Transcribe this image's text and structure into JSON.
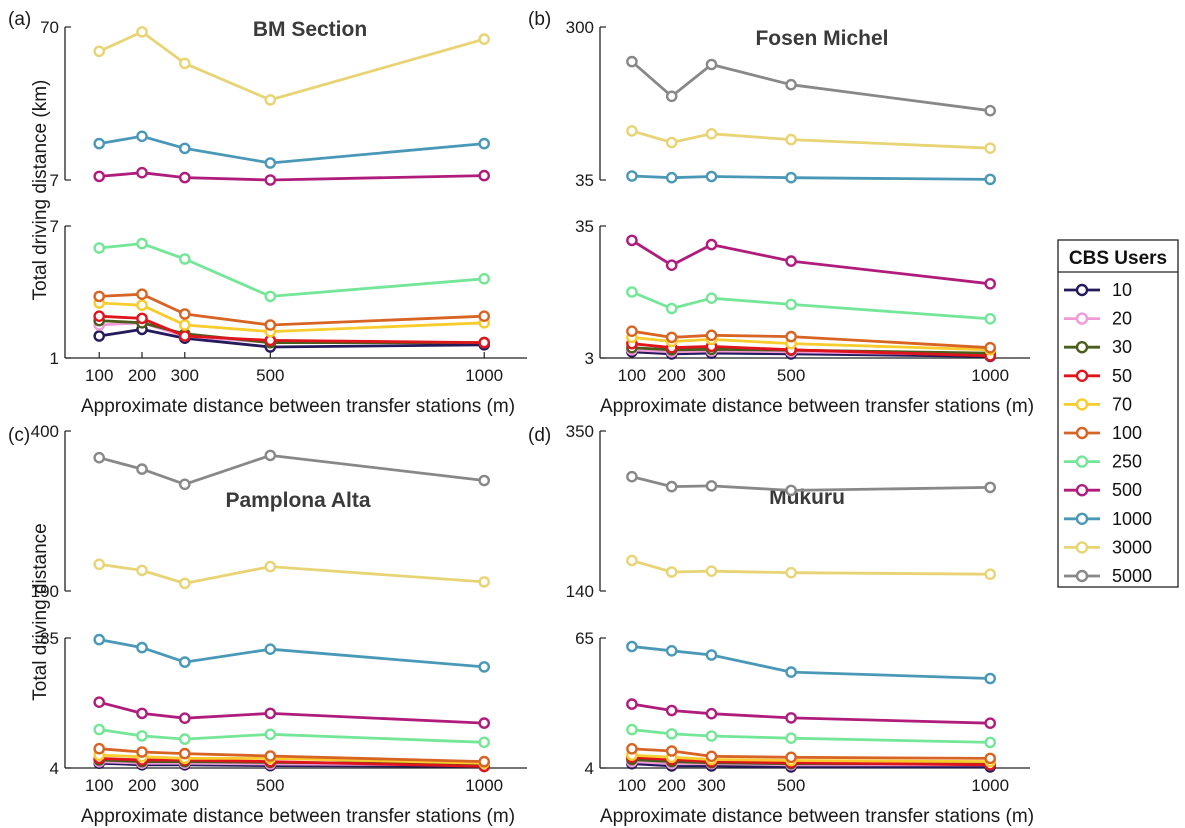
{
  "figure": {
    "ylabel_top": "Total driving distance (km)",
    "ylabel_bottom": "Total driving distance"
  },
  "legend": {
    "title": "CBS Users",
    "entries": [
      {
        "label": "10",
        "color": "#241a5c"
      },
      {
        "label": "20",
        "color": "#f29ad8"
      },
      {
        "label": "30",
        "color": "#4a5e1c"
      },
      {
        "label": "50",
        "color": "#e0141c"
      },
      {
        "label": "70",
        "color": "#f8cc2c"
      },
      {
        "label": "100",
        "color": "#d86424"
      },
      {
        "label": "250",
        "color": "#74e698"
      },
      {
        "label": "500",
        "color": "#b01c7c"
      },
      {
        "label": "1000",
        "color": "#4a98b8"
      },
      {
        "label": "3000",
        "color": "#e8d474"
      },
      {
        "label": "5000",
        "color": "#888888"
      }
    ]
  },
  "chart_data": [
    {
      "type": "line",
      "panel": "(a)",
      "title": "BM Section",
      "xlabel": "Approximate distance between transfer stations (m)",
      "x": [
        100,
        200,
        300,
        500,
        1000
      ],
      "ylim_upper": [
        7,
        70
      ],
      "ylim_lower": [
        1,
        7
      ],
      "yticks_upper": [
        "70",
        "7"
      ],
      "yticks_lower": [
        "7",
        "1"
      ],
      "series": [
        {
          "name": "10",
          "values": [
            2.0,
            2.3,
            1.9,
            1.5,
            1.6
          ]
        },
        {
          "name": "20",
          "values": [
            2.5,
            2.6,
            2.0,
            1.7,
            1.7
          ]
        },
        {
          "name": "30",
          "values": [
            2.7,
            2.6,
            2.1,
            1.7,
            1.7
          ]
        },
        {
          "name": "50",
          "values": [
            2.9,
            2.8,
            2.0,
            1.8,
            1.7
          ]
        },
        {
          "name": "70",
          "values": [
            3.5,
            3.4,
            2.5,
            2.2,
            2.6
          ]
        },
        {
          "name": "100",
          "values": [
            3.8,
            3.9,
            3.0,
            2.5,
            2.9
          ]
        },
        {
          "name": "250",
          "values": [
            6.0,
            6.2,
            5.5,
            3.8,
            4.6
          ]
        },
        {
          "name": "500",
          "values": [
            8.5,
            10,
            8,
            7,
            8.8
          ]
        },
        {
          "name": "1000",
          "values": [
            22,
            25,
            20,
            14,
            22
          ]
        },
        {
          "name": "3000",
          "values": [
            60,
            68,
            55,
            40,
            65
          ]
        }
      ]
    },
    {
      "type": "line",
      "panel": "(b)",
      "title": "Fosen Michel",
      "xlabel": "Approximate distance between transfer stations (m)",
      "x": [
        100,
        200,
        300,
        500,
        1000
      ],
      "ylim_upper": [
        35,
        300
      ],
      "ylim_lower": [
        3,
        35
      ],
      "yticks_upper": [
        "300",
        "35"
      ],
      "yticks_lower": [
        "35",
        "3"
      ],
      "series": [
        {
          "name": "10",
          "values": [
            4.5,
            4.0,
            4.2,
            4.0,
            3.4
          ]
        },
        {
          "name": "20",
          "values": [
            5.0,
            4.5,
            4.7,
            4.5,
            3.8
          ]
        },
        {
          "name": "30",
          "values": [
            5.5,
            5.0,
            5.1,
            4.9,
            4.2
          ]
        },
        {
          "name": "50",
          "values": [
            6.5,
            5.5,
            5.8,
            5.0,
            3.5
          ]
        },
        {
          "name": "70",
          "values": [
            8.0,
            7.0,
            7.5,
            6.5,
            5.0
          ]
        },
        {
          "name": "100",
          "values": [
            9.5,
            8.0,
            8.5,
            8.2,
            5.5
          ]
        },
        {
          "name": "250",
          "values": [
            19,
            15,
            17.5,
            16,
            12.5
          ]
        },
        {
          "name": "500",
          "values": [
            31.5,
            25.5,
            30.5,
            26.5,
            21
          ]
        },
        {
          "name": "1000",
          "values": [
            42,
            39,
            41,
            39,
            36
          ]
        },
        {
          "name": "3000",
          "values": [
            120,
            100,
            115,
            105,
            90
          ]
        },
        {
          "name": "5000",
          "values": [
            240,
            180,
            235,
            200,
            155
          ]
        }
      ]
    },
    {
      "type": "line",
      "panel": "(c)",
      "title": "Pamplona Alta",
      "xlabel": "Approximate distance between transfer stations (m)",
      "x": [
        100,
        200,
        300,
        500,
        1000
      ],
      "ylim_upper": [
        190,
        400
      ],
      "ylim_lower": [
        4,
        85
      ],
      "yticks_upper": [
        "400",
        "190"
      ],
      "yticks_lower": [
        "85",
        "4"
      ],
      "series": [
        {
          "name": "10",
          "values": [
            7,
            6,
            6,
            5.5,
            5
          ]
        },
        {
          "name": "20",
          "values": [
            8,
            7,
            7,
            6.5,
            6
          ]
        },
        {
          "name": "30",
          "values": [
            9,
            8,
            8,
            7.5,
            6.5
          ]
        },
        {
          "name": "50",
          "values": [
            10,
            9,
            9,
            8,
            5
          ]
        },
        {
          "name": "70",
          "values": [
            12,
            11,
            10,
            10,
            7
          ]
        },
        {
          "name": "100",
          "values": [
            16,
            14,
            13,
            11.5,
            8
          ]
        },
        {
          "name": "250",
          "values": [
            28,
            24,
            22,
            25,
            20
          ]
        },
        {
          "name": "500",
          "values": [
            45,
            38,
            35,
            38,
            32
          ]
        },
        {
          "name": "1000",
          "values": [
            84,
            79,
            70,
            78,
            67
          ]
        },
        {
          "name": "3000",
          "values": [
            225,
            217,
            200,
            222,
            202
          ]
        },
        {
          "name": "5000",
          "values": [
            365,
            350,
            330,
            368,
            335
          ]
        }
      ]
    },
    {
      "type": "line",
      "panel": "(d)",
      "title": "Mukuru",
      "xlabel": "Approximate distance between transfer stations (m)",
      "x": [
        100,
        200,
        300,
        500,
        1000
      ],
      "ylim_upper": [
        140,
        350
      ],
      "ylim_lower": [
        4,
        65
      ],
      "yticks_upper": [
        "350",
        "140"
      ],
      "yticks_lower": [
        "65",
        "4"
      ],
      "series": [
        {
          "name": "10",
          "values": [
            6,
            5,
            5,
            4.5,
            4.5
          ]
        },
        {
          "name": "20",
          "values": [
            7,
            6,
            6,
            5.5,
            5.5
          ]
        },
        {
          "name": "30",
          "values": [
            8,
            7,
            6.5,
            6,
            6
          ]
        },
        {
          "name": "50",
          "values": [
            9,
            8,
            7,
            6.5,
            5.5
          ]
        },
        {
          "name": "70",
          "values": [
            10,
            9,
            8,
            7.5,
            7
          ]
        },
        {
          "name": "100",
          "values": [
            13,
            12,
            9.5,
            9,
            8.5
          ]
        },
        {
          "name": "250",
          "values": [
            22,
            20,
            19,
            18,
            16
          ]
        },
        {
          "name": "500",
          "values": [
            34,
            31,
            29.5,
            27.5,
            25
          ]
        },
        {
          "name": "1000",
          "values": [
            61,
            59,
            57,
            49,
            46
          ]
        },
        {
          "name": "3000",
          "values": [
            180,
            165,
            166,
            164,
            162
          ]
        },
        {
          "name": "5000",
          "values": [
            290,
            277,
            278,
            272,
            276
          ]
        }
      ]
    }
  ]
}
